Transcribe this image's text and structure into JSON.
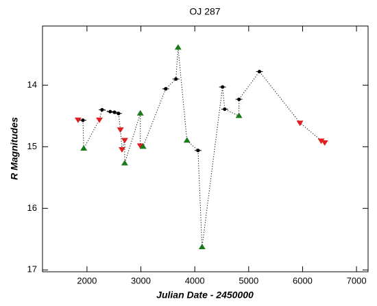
{
  "chart_data": {
    "type": "line",
    "title": "OJ 287",
    "x_label": "Julian Date - 2450000",
    "y_label": "R Magnitudes",
    "xlim": [
      1175,
      7215
    ],
    "xticks": [
      2000,
      3000,
      4000,
      5000,
      6000,
      7000
    ],
    "ylim": [
      13.04,
      17.03
    ],
    "yticks": [
      14,
      15,
      16,
      17
    ],
    "invert_y": true,
    "line_color": "#000000",
    "line_style": "dotted",
    "series": [
      {
        "x": [
          1835,
          1925,
          1940,
          2230,
          2280,
          2430,
          2510,
          2585,
          2620,
          2650,
          2700,
          2700,
          2990,
          2990,
          3040,
          3460,
          3650,
          3690,
          3855,
          4060,
          4135,
          4515,
          4555,
          4820,
          4820,
          5200,
          5950,
          6345,
          6410
        ],
        "values": [
          14.56,
          14.57,
          15.03,
          14.56,
          14.4,
          14.43,
          14.44,
          14.46,
          14.72,
          15.04,
          14.89,
          15.27,
          14.46,
          14.98,
          15.0,
          14.06,
          13.9,
          13.39,
          14.9,
          15.06,
          16.63,
          14.03,
          14.39,
          14.5,
          14.23,
          13.78,
          14.61,
          14.9,
          14.93
        ],
        "point_colors": [
          "#e02020",
          "#000000",
          "#1a7a1a",
          "#e02020",
          "#000000",
          "#000000",
          "#000000",
          "#000000",
          "#e02020",
          "#e02020",
          "#e02020",
          "#1a7a1a",
          "#1a7a1a",
          "#e02020",
          "#1a7a1a",
          "#000000",
          "#000000",
          "#1a7a1a",
          "#1a7a1a",
          "#000000",
          "#1a7a1a",
          "#000000",
          "#000000",
          "#1a7a1a",
          "#000000",
          "#000000",
          "#e02020",
          "#e02020",
          "#e02020"
        ],
        "point_shapes": [
          "triangle-down",
          "circle",
          "triangle-up",
          "triangle-down",
          "circle",
          "circle",
          "circle",
          "circle",
          "triangle-down",
          "triangle-down",
          "triangle-down",
          "triangle-up",
          "triangle-up",
          "triangle-down",
          "triangle-up",
          "circle",
          "circle",
          "triangle-up",
          "triangle-up",
          "circle",
          "triangle-up",
          "circle",
          "circle",
          "triangle-up",
          "circle",
          "circle",
          "triangle-down",
          "triangle-down",
          "triangle-down"
        ]
      }
    ]
  }
}
